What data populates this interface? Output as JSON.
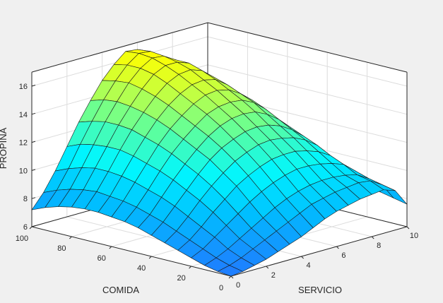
{
  "chart_data": {
    "type": "surface",
    "title": "",
    "xlabel": "SERVICIO",
    "ylabel": "COMIDA",
    "zlabel": "PROPINA",
    "xlim": [
      0,
      10
    ],
    "ylim": [
      0,
      100
    ],
    "zlim": [
      6,
      17
    ],
    "xticks": [
      "0",
      "2",
      "4",
      "6",
      "8",
      "10"
    ],
    "yticks": [
      "0",
      "20",
      "40",
      "60",
      "80",
      "100"
    ],
    "zticks": [
      "6",
      "8",
      "10",
      "12",
      "14",
      "16"
    ],
    "grid": true,
    "colormap": "parula",
    "colors": {
      "low": "#1f7cff",
      "mid": "#00f6ff",
      "mid_high": "#5cffa0",
      "high": "#ffff00",
      "background": "#f0f0f0",
      "axes_face": "#ffffff"
    },
    "x": [
      0,
      0.667,
      1.333,
      2,
      2.667,
      3.333,
      4,
      4.667,
      5.333,
      6,
      6.667,
      7.333,
      8,
      8.667,
      9.333,
      10
    ],
    "y": [
      0,
      6.667,
      13.333,
      20,
      26.667,
      33.333,
      40,
      46.667,
      53.333,
      60,
      66.667,
      73.333,
      80,
      86.667,
      93.333,
      100
    ],
    "z": [
      [
        6.0,
        6.1,
        6.3,
        6.5,
        6.8,
        7.1,
        7.4,
        7.8,
        8.2,
        8.5,
        8.7,
        8.9,
        9.0,
        9.1,
        8.8,
        7.6
      ],
      [
        6.1,
        6.3,
        6.6,
        7.0,
        7.4,
        7.8,
        8.2,
        8.6,
        9.0,
        9.2,
        9.4,
        9.5,
        9.6,
        9.5,
        9.0,
        7.8
      ],
      [
        6.3,
        6.6,
        7.0,
        7.5,
        8.0,
        8.5,
        9.0,
        9.4,
        9.7,
        9.9,
        10.0,
        10.0,
        9.9,
        9.7,
        9.2,
        8.0
      ],
      [
        6.6,
        7.0,
        7.6,
        8.2,
        8.8,
        9.4,
        9.9,
        10.3,
        10.6,
        10.8,
        10.8,
        10.7,
        10.5,
        10.2,
        9.5,
        8.2
      ],
      [
        6.9,
        7.4,
        8.1,
        8.9,
        9.6,
        10.3,
        10.8,
        11.2,
        11.5,
        11.6,
        11.6,
        11.4,
        11.1,
        10.6,
        9.8,
        8.4
      ],
      [
        7.2,
        7.8,
        8.6,
        9.5,
        10.3,
        11.0,
        11.6,
        12.0,
        12.3,
        12.4,
        12.3,
        12.1,
        11.7,
        11.1,
        10.1,
        8.6
      ],
      [
        7.5,
        8.2,
        9.1,
        10.0,
        10.9,
        11.7,
        12.3,
        12.7,
        13.0,
        13.1,
        13.0,
        12.7,
        12.2,
        11.5,
        10.4,
        8.8
      ],
      [
        7.8,
        8.5,
        9.5,
        10.5,
        11.4,
        12.2,
        12.9,
        13.4,
        13.7,
        13.8,
        13.7,
        13.3,
        12.7,
        11.9,
        10.7,
        9.0
      ],
      [
        8.0,
        8.8,
        9.8,
        10.9,
        11.9,
        12.7,
        13.4,
        14.0,
        14.3,
        14.4,
        14.3,
        13.9,
        13.2,
        12.3,
        11.0,
        9.2
      ],
      [
        8.1,
        9.0,
        10.1,
        11.2,
        12.3,
        13.2,
        13.9,
        14.5,
        14.9,
        15.0,
        14.8,
        14.3,
        13.6,
        12.6,
        11.2,
        9.4
      ],
      [
        8.2,
        9.1,
        10.3,
        11.5,
        12.6,
        13.6,
        14.4,
        15.0,
        15.4,
        15.5,
        15.3,
        14.7,
        13.9,
        12.8,
        11.4,
        9.5
      ],
      [
        8.2,
        9.2,
        10.4,
        11.7,
        12.9,
        13.9,
        14.8,
        15.5,
        15.9,
        16.0,
        15.7,
        15.0,
        14.1,
        12.9,
        11.5,
        9.6
      ],
      [
        8.1,
        9.1,
        10.4,
        11.7,
        13.0,
        14.1,
        15.1,
        15.9,
        16.3,
        16.3,
        16.0,
        15.2,
        14.2,
        13.0,
        11.5,
        9.6
      ],
      [
        7.9,
        8.9,
        10.2,
        11.6,
        13.0,
        14.2,
        15.3,
        16.1,
        16.6,
        16.5,
        16.0,
        15.2,
        14.1,
        12.9,
        11.4,
        9.5
      ],
      [
        7.6,
        8.6,
        9.9,
        11.4,
        12.8,
        14.1,
        15.2,
        16.1,
        16.7,
        16.6,
        16.0,
        15.0,
        13.9,
        12.6,
        11.2,
        9.3
      ],
      [
        7.2,
        8.2,
        9.5,
        11.0,
        12.5,
        13.8,
        15.0,
        15.9,
        16.6,
        16.5,
        15.8,
        14.7,
        13.5,
        12.2,
        10.8,
        9.0
      ]
    ]
  }
}
